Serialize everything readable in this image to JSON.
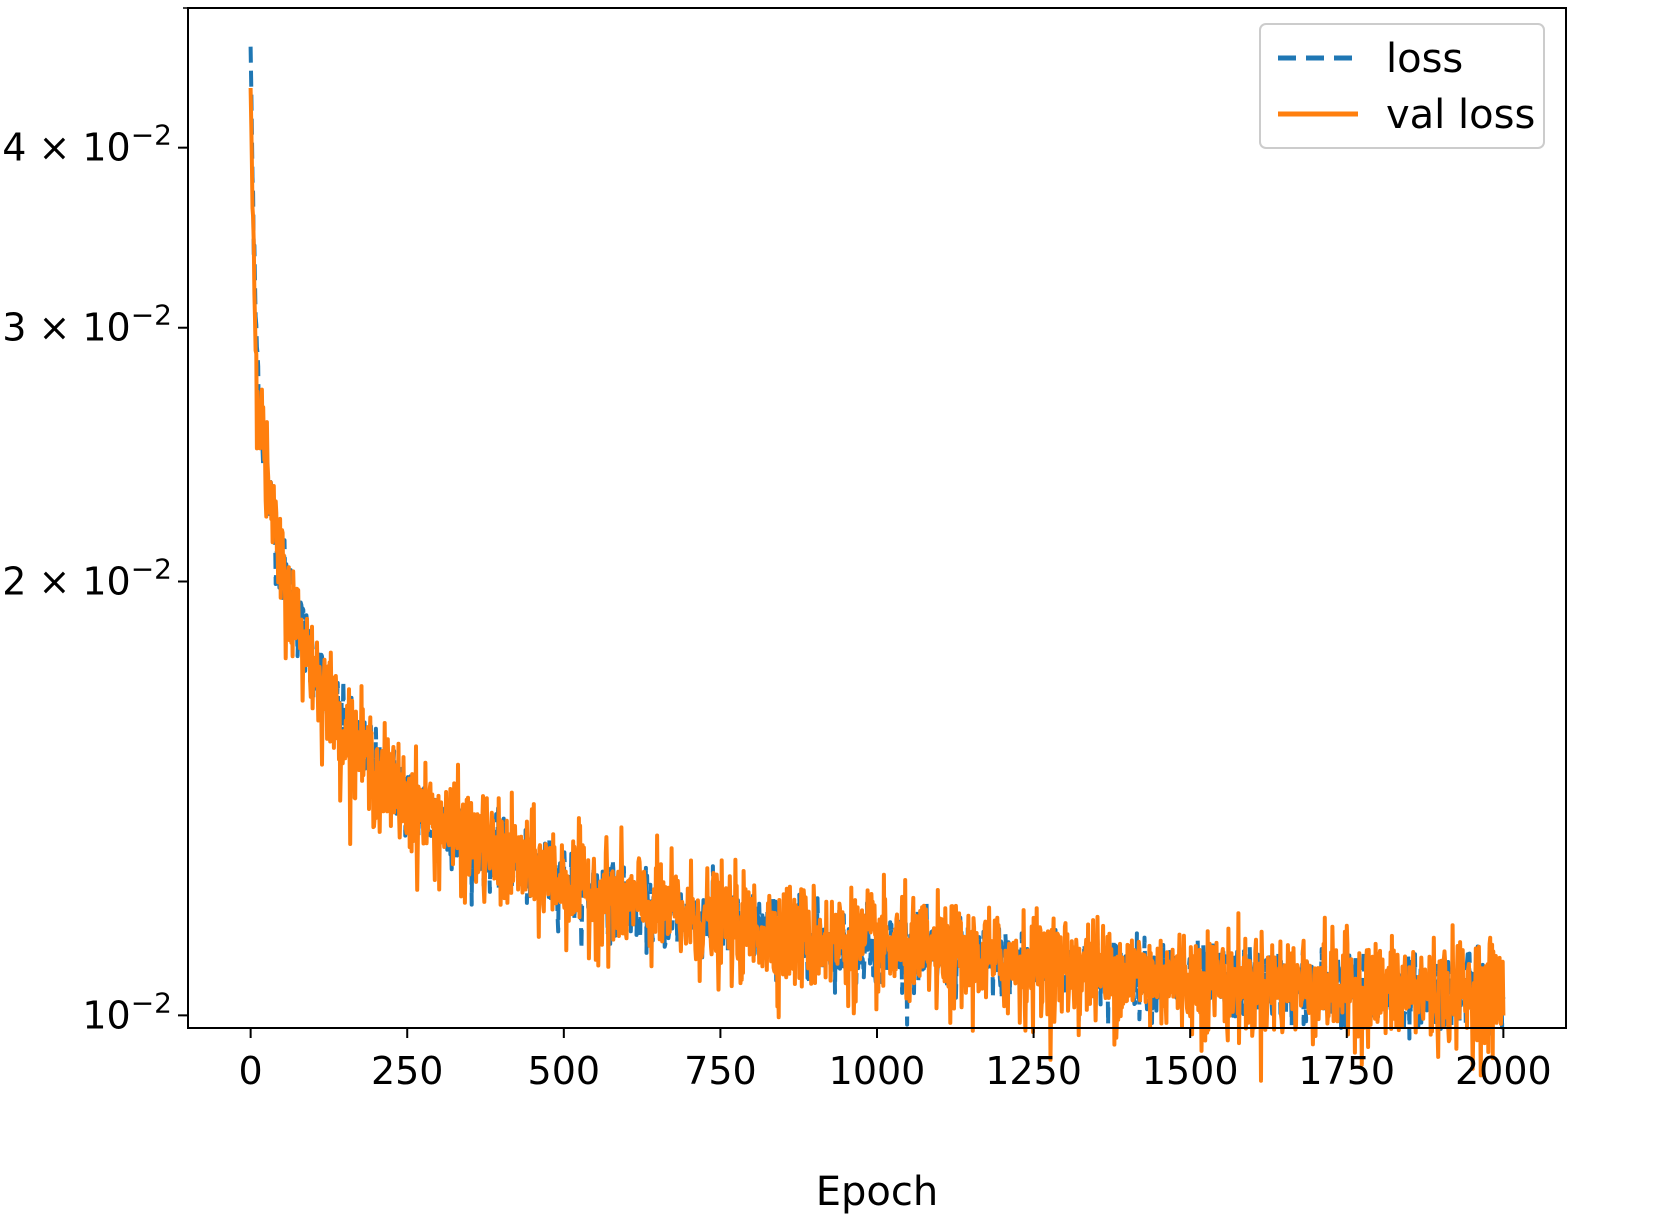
{
  "chart_data": {
    "type": "line",
    "title": "",
    "xlabel": "Epoch",
    "ylabel": "",
    "xlim": [
      -100,
      2100
    ],
    "ylim": [
      0.0098,
      0.05
    ],
    "yscale": "log",
    "grid": false,
    "legend_position": "top-right",
    "x_ticks": [
      0,
      250,
      500,
      750,
      1000,
      1250,
      1500,
      1750,
      2000
    ],
    "x_tick_labels": [
      "0",
      "250",
      "500",
      "750",
      "1000",
      "1250",
      "1500",
      "1750",
      "2000"
    ],
    "y_ticks": [
      {
        "value": 0.01,
        "mantissa": "",
        "exponent": "−2"
      },
      {
        "value": 0.02,
        "mantissa": "2",
        "exponent": "−2"
      },
      {
        "value": 0.03,
        "mantissa": "3",
        "exponent": "−2"
      },
      {
        "value": 0.04,
        "mantissa": "4",
        "exponent": "−2"
      }
    ],
    "series": [
      {
        "name": "loss",
        "color": "#1f77b4",
        "style": "dashed",
        "x": [
          0,
          2,
          5,
          10,
          15,
          20,
          30,
          40,
          50,
          75,
          100,
          125,
          150,
          200,
          250,
          300,
          400,
          500,
          600,
          700,
          800,
          900,
          1000,
          1100,
          1200,
          1300,
          1400,
          1500,
          1600,
          1700,
          1800,
          1900,
          2000
        ],
        "y": [
          0.047,
          0.041,
          0.034,
          0.029,
          0.0265,
          0.025,
          0.023,
          0.0215,
          0.0205,
          0.0188,
          0.0176,
          0.0166,
          0.0159,
          0.0149,
          0.0142,
          0.0136,
          0.0129,
          0.0124,
          0.012,
          0.0117,
          0.0115,
          0.0113,
          0.0112,
          0.011,
          0.0109,
          0.0108,
          0.0107,
          0.0106,
          0.0105,
          0.0105,
          0.0104,
          0.0104,
          0.0104
        ]
      },
      {
        "name": "val loss",
        "color": "#ff7f0e",
        "style": "solid",
        "x": [
          0,
          2,
          5,
          10,
          15,
          20,
          30,
          40,
          50,
          75,
          100,
          125,
          150,
          200,
          250,
          300,
          400,
          500,
          600,
          700,
          800,
          900,
          1000,
          1100,
          1200,
          1300,
          1400,
          1500,
          1600,
          1700,
          1800,
          1900,
          2000
        ],
        "y": [
          0.044,
          0.039,
          0.033,
          0.0285,
          0.026,
          0.0248,
          0.0228,
          0.0213,
          0.0203,
          0.0186,
          0.0175,
          0.0165,
          0.0158,
          0.0148,
          0.0141,
          0.0136,
          0.0129,
          0.0124,
          0.012,
          0.0117,
          0.0115,
          0.0113,
          0.0112,
          0.011,
          0.0109,
          0.0108,
          0.0107,
          0.0106,
          0.0105,
          0.0105,
          0.0104,
          0.0104,
          0.0104
        ]
      }
    ]
  }
}
